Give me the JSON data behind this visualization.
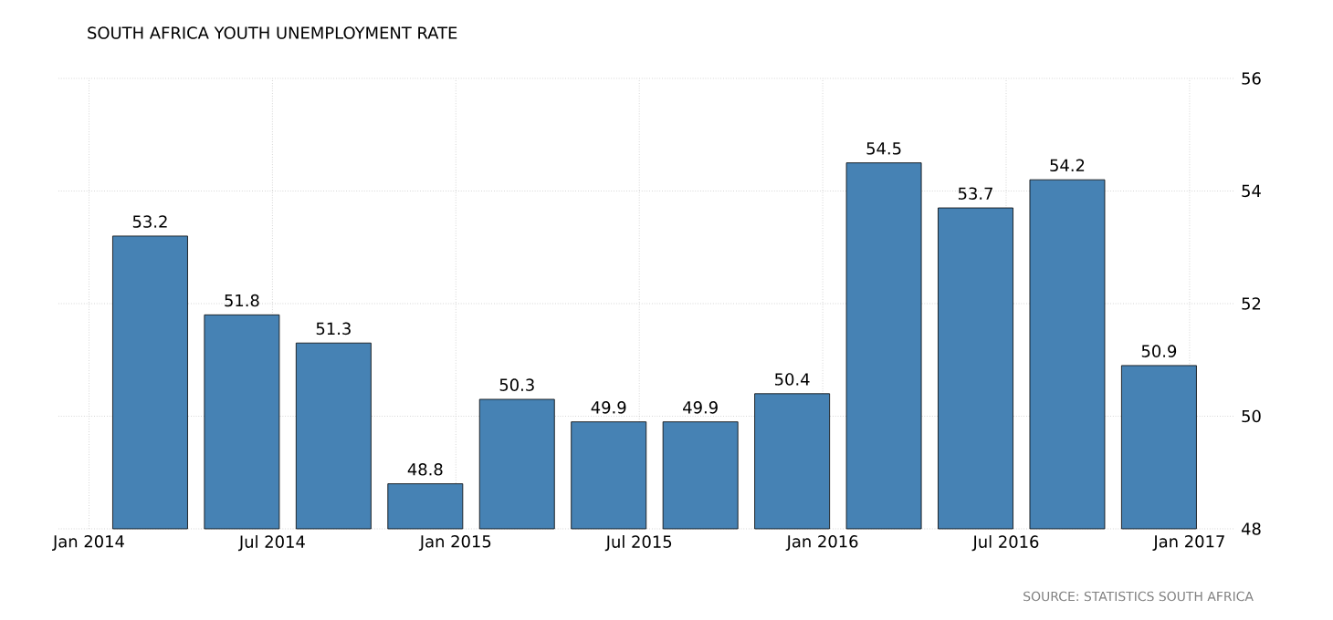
{
  "chart_data": {
    "type": "bar",
    "title": "SOUTH AFRICA YOUTH UNEMPLOYMENT RATE",
    "x": [
      "2014-03",
      "2014-06",
      "2014-09",
      "2014-12",
      "2015-03",
      "2015-06",
      "2015-09",
      "2015-12",
      "2016-03",
      "2016-06",
      "2016-09",
      "2016-12"
    ],
    "values": [
      53.2,
      51.8,
      51.3,
      48.8,
      50.3,
      49.9,
      49.9,
      50.4,
      54.5,
      53.7,
      54.2,
      50.9
    ],
    "color": "#4682b4",
    "xlim": [
      "2013-12",
      "2017-02-15"
    ],
    "xticks": [
      {
        "value": "2014-01",
        "label": "Jan 2014"
      },
      {
        "value": "2014-07",
        "label": "Jul 2014"
      },
      {
        "value": "2015-01",
        "label": "Jan 2015"
      },
      {
        "value": "2015-07",
        "label": "Jul 2015"
      },
      {
        "value": "2016-01",
        "label": "Jan 2016"
      },
      {
        "value": "2016-07",
        "label": "Jul 2016"
      },
      {
        "value": "2017-01",
        "label": "Jan 2017"
      }
    ],
    "ylim": [
      48,
      56
    ],
    "yticks": [
      48,
      50,
      52,
      54,
      56
    ],
    "grid": true,
    "data_labels": true,
    "annotations": [
      "SOURCE: STATISTICS SOUTH AFRICA"
    ]
  }
}
